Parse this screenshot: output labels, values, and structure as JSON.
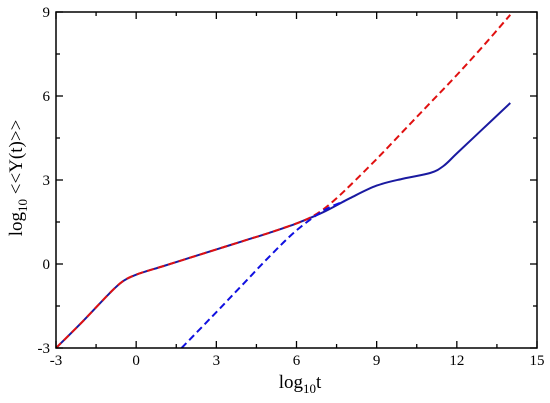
{
  "chart_data": {
    "type": "line",
    "title": "",
    "xlabel_main": "log",
    "xlabel_sub": "10",
    "xlabel_rest": "t",
    "ylabel_main": "log",
    "ylabel_sub": "10",
    "ylabel_rest": " <<Y(t)>>",
    "xlim": [
      -3,
      15
    ],
    "ylim": [
      -3,
      9
    ],
    "xticks": [
      -3,
      0,
      3,
      6,
      9,
      12,
      15
    ],
    "yticks": [
      -3,
      0,
      3,
      6,
      9
    ],
    "xtick_labels": [
      "-3",
      "0",
      "3",
      "6",
      "9",
      "12",
      "15"
    ],
    "ytick_labels": [
      "-3",
      "0",
      "3",
      "6",
      "9"
    ],
    "grid": false,
    "series": [
      {
        "style": "solid",
        "color": "#1a1aa0",
        "x": [
          -3,
          -2,
          -1,
          -0.5,
          0,
          1,
          2,
          3,
          4,
          5,
          6,
          7,
          8,
          9,
          10,
          11,
          11.5,
          12,
          13,
          14
        ],
        "y": [
          -3,
          -2.05,
          -1.05,
          -0.62,
          -0.38,
          -0.08,
          0.22,
          0.52,
          0.82,
          1.12,
          1.45,
          1.85,
          2.35,
          2.8,
          3.05,
          3.25,
          3.5,
          3.95,
          4.85,
          5.75
        ]
      },
      {
        "style": "dashed",
        "color": "#e01010",
        "x": [
          -3,
          -2,
          -1,
          -0.5,
          0,
          1,
          2,
          3,
          4,
          5,
          6,
          6.5,
          7,
          7.5,
          8,
          9,
          10,
          11,
          12,
          13,
          14
        ],
        "y": [
          -3,
          -2.05,
          -1.05,
          -0.62,
          -0.38,
          -0.08,
          0.22,
          0.52,
          0.82,
          1.12,
          1.45,
          1.65,
          1.95,
          2.35,
          2.8,
          3.75,
          4.75,
          5.75,
          6.75,
          7.8,
          8.9
        ]
      },
      {
        "style": "dashed",
        "color": "#1010e0",
        "x": [
          1.7,
          3,
          4,
          5,
          6,
          7,
          7.8
        ],
        "y": [
          -3,
          -1.72,
          -0.72,
          0.28,
          1.2,
          1.9,
          2.25
        ]
      }
    ]
  }
}
